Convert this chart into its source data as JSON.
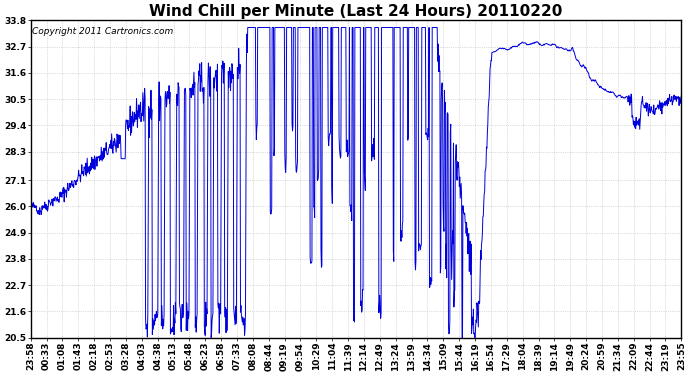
{
  "title": "Wind Chill per Minute (Last 24 Hours) 20110220",
  "copyright_text": "Copyright 2011 Cartronics.com",
  "line_color": "#0000dd",
  "background_color": "#ffffff",
  "grid_color": "#aaaaaa",
  "yticks": [
    20.5,
    21.6,
    22.7,
    23.8,
    24.9,
    26.0,
    27.1,
    28.3,
    29.4,
    30.5,
    31.6,
    32.7,
    33.8
  ],
  "ylim": [
    20.5,
    33.8
  ],
  "xtick_labels": [
    "23:58",
    "00:33",
    "01:08",
    "01:43",
    "02:18",
    "02:53",
    "03:28",
    "04:03",
    "04:38",
    "05:13",
    "05:48",
    "06:23",
    "06:58",
    "07:33",
    "08:08",
    "08:44",
    "09:19",
    "09:54",
    "10:29",
    "11:04",
    "11:39",
    "12:14",
    "12:49",
    "13:24",
    "13:59",
    "14:34",
    "15:09",
    "15:44",
    "16:19",
    "16:54",
    "17:29",
    "18:04",
    "18:39",
    "19:14",
    "19:49",
    "20:24",
    "20:59",
    "21:34",
    "22:09",
    "22:44",
    "23:19",
    "23:55"
  ],
  "title_fontsize": 11,
  "tick_fontsize": 6.5,
  "copyright_fontsize": 6.5
}
